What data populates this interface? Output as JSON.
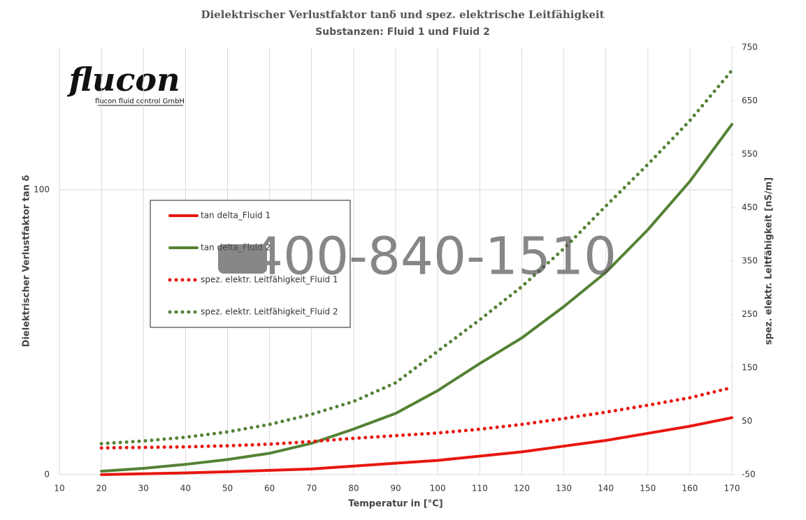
{
  "logo": {
    "name": "flucon",
    "subtitle": "flucon fluid control GmbH"
  },
  "watermark": "400-840-1510",
  "chart_data": {
    "type": "line",
    "title": "Dielektrischer Verlustfaktor tanδ und spez. elektrische Leitfähigkeit",
    "subtitle": "Substanzen:  Fluid 1 und  Fluid 2",
    "x_label": "Temperatur in [°C]",
    "y_label": "Dielektrischer Verlustfaktor tan δ",
    "y2_label": "spez. elektr. Leitfähigkeit [nS/m]",
    "x": [
      20,
      30,
      40,
      50,
      60,
      70,
      80,
      90,
      100,
      110,
      120,
      130,
      140,
      150,
      160,
      170
    ],
    "xlim": [
      10,
      170
    ],
    "xticks": [
      10,
      20,
      30,
      40,
      50,
      60,
      70,
      80,
      90,
      100,
      110,
      120,
      130,
      140,
      150,
      160,
      170
    ],
    "ylim": [
      0,
      150
    ],
    "yticks": [
      0,
      100
    ],
    "y2lim": [
      -50,
      750
    ],
    "y2ticks": [
      -50,
      50,
      150,
      250,
      350,
      450,
      550,
      650,
      750
    ],
    "grid": true,
    "series": [
      {
        "name": "tan delta_Fluid 1",
        "color": "#e8160f",
        "line_style": "solid",
        "values": [
          0,
          0.3,
          0.6,
          1,
          1.5,
          2,
          3,
          4,
          5,
          6.5,
          8,
          10,
          12,
          14.5,
          17,
          20
        ]
      },
      {
        "name": "tan delta_Fluid 2",
        "color": "#548235",
        "line_style": "solid",
        "values": [
          1.2,
          2.2,
          3.6,
          5.3,
          7.5,
          11,
          16,
          21.5,
          29.5,
          39,
          48,
          59,
          71,
          86,
          103,
          123
        ]
      },
      {
        "name": "spez. elektr. Leitfähigkeit_Fluid 1",
        "color": "#e8160f",
        "line_style": "dotted",
        "axis": "y2",
        "values": [
          0,
          1,
          2,
          4,
          7,
          12,
          18,
          23,
          28,
          35,
          44,
          55,
          67,
          80,
          94,
          113
        ]
      },
      {
        "name": "spez. elektr. Leitfähigkeit_Fluid 2",
        "color": "#548235",
        "line_style": "dotted",
        "axis": "y2",
        "values": [
          8,
          13,
          20,
          30,
          44,
          63,
          87,
          122,
          181,
          240,
          302,
          373,
          453,
          531,
          613,
          707
        ]
      }
    ]
  }
}
